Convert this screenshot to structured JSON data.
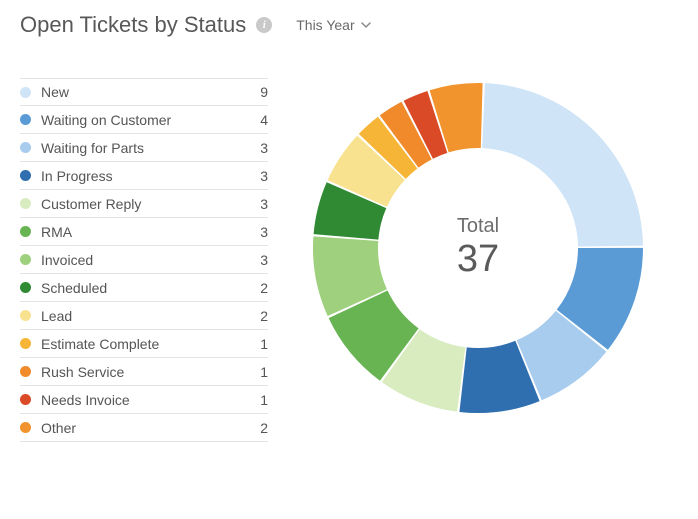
{
  "header": {
    "title": "Open Tickets by Status",
    "period_label": "This Year"
  },
  "chart": {
    "type": "donut",
    "total_label": "Total",
    "total_value": 37,
    "outer_radius": 165,
    "inner_radius": 100,
    "start_angle_deg": -88,
    "gap_deg": 0.8,
    "background_color": "#ffffff",
    "title_fontsize": 22,
    "label_fontsize": 14,
    "total_label_fontsize": 20,
    "total_value_fontsize": 38,
    "items": [
      {
        "label": "New",
        "value": 9,
        "color": "#cfe4f6"
      },
      {
        "label": "Waiting on Customer",
        "value": 4,
        "color": "#5a9bd5"
      },
      {
        "label": "Waiting for Parts",
        "value": 3,
        "color": "#a8cced"
      },
      {
        "label": "In Progress",
        "value": 3,
        "color": "#2f6fb0"
      },
      {
        "label": "Customer Reply",
        "value": 3,
        "color": "#d8ecc0"
      },
      {
        "label": "RMA",
        "value": 3,
        "color": "#68b352"
      },
      {
        "label": "Invoiced",
        "value": 3,
        "color": "#9ed07e"
      },
      {
        "label": "Scheduled",
        "value": 2,
        "color": "#2f8a33"
      },
      {
        "label": "Lead",
        "value": 2,
        "color": "#f8e290"
      },
      {
        "label": "Estimate Complete",
        "value": 1,
        "color": "#f6b537"
      },
      {
        "label": "Rush Service",
        "value": 1,
        "color": "#f08a2a"
      },
      {
        "label": "Needs Invoice",
        "value": 1,
        "color": "#db4a26"
      },
      {
        "label": "Other",
        "value": 2,
        "color": "#f1942d"
      }
    ]
  }
}
